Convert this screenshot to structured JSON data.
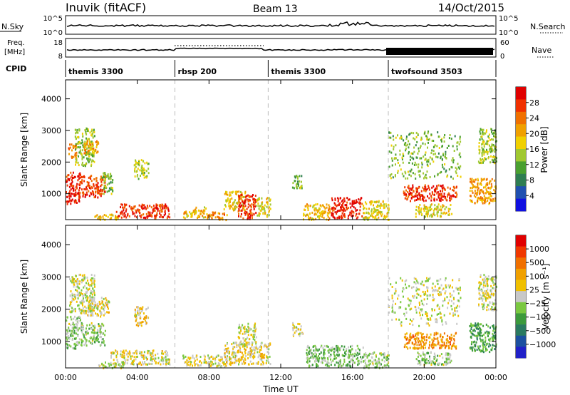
{
  "header": {
    "station": "Inuvik (fitACF)",
    "beam": "Beam 13",
    "date": "14/Oct/2015"
  },
  "strip_labels": {
    "nsky": "N.Sky",
    "nsky_ticks": [
      "10^5",
      "10^0"
    ],
    "nsearch": "N.Search",
    "nsearch_ticks": [
      "10^5",
      "10^0"
    ],
    "freq_line1": "Freq.",
    "freq_line2": "[MHz]",
    "freq_ticks": [
      "18",
      "8"
    ],
    "nave": "Nave",
    "nave_ticks": [
      "60",
      "0"
    ],
    "cpid": "CPID"
  },
  "cpid_segments": [
    {
      "label": "themis 3300",
      "start": 0.0
    },
    {
      "label": "rbsp 200",
      "start": 6.1
    },
    {
      "label": "themis 3300",
      "start": 11.3
    },
    {
      "label": "twofsound 3503",
      "start": 18.0
    }
  ],
  "time_axis": {
    "label": "Time UT",
    "ticks": [
      "00:00",
      "04:00",
      "08:00",
      "12:00",
      "16:00",
      "20:00",
      "00:00"
    ],
    "range_hours": [
      0,
      24
    ]
  },
  "range_axis": {
    "label": "Slant Range [km]",
    "ticks": [
      "1000",
      "2000",
      "3000",
      "4000"
    ],
    "range_km": [
      180,
      4600
    ]
  },
  "power_colorbar": {
    "label": "Power [dB]",
    "ticks": [
      "4",
      "8",
      "12",
      "16",
      "20",
      "24",
      "28"
    ],
    "colors": [
      "#1010e0",
      "#2050b0",
      "#2e7d52",
      "#4aa030",
      "#a0c830",
      "#f0d000",
      "#f0a000",
      "#f07000",
      "#f03000",
      "#e00000"
    ]
  },
  "velocity_colorbar": {
    "label": "Velocity [m s⁻¹]",
    "ticks": [
      "1000",
      "500",
      "100",
      "25",
      "−25",
      "−100",
      "−500",
      "−1000"
    ],
    "colors": [
      "#2020c8",
      "#1c50a0",
      "#2a7a60",
      "#3c9a3c",
      "#7ac840",
      "#c8c8c8",
      "#f0c000",
      "#f0a000",
      "#f07000",
      "#f03800",
      "#e00000"
    ]
  },
  "chart_data": [
    {
      "type": "heatmap",
      "name": "Power",
      "xlabel": "Time UT",
      "ylabel": "Slant Range [km]",
      "xlim": [
        0,
        24
      ],
      "ylim": [
        180,
        4600
      ],
      "units": "dB",
      "regions": [
        {
          "t": [
            0.0,
            0.8
          ],
          "r": [
            700,
            1700
          ],
          "v": 27
        },
        {
          "t": [
            0.1,
            0.6
          ],
          "r": [
            2100,
            2600
          ],
          "v": 22
        },
        {
          "t": [
            0.7,
            2.2
          ],
          "r": [
            900,
            1600
          ],
          "v": 25
        },
        {
          "t": [
            0.5,
            1.6
          ],
          "r": [
            1900,
            3100
          ],
          "v": 13
        },
        {
          "t": [
            1.0,
            1.8
          ],
          "r": [
            2300,
            2700
          ],
          "v": 20
        },
        {
          "t": [
            2.0,
            2.6
          ],
          "r": [
            1000,
            1700
          ],
          "v": 12
        },
        {
          "t": [
            1.6,
            3.0
          ],
          "r": [
            200,
            400
          ],
          "v": 18
        },
        {
          "t": [
            2.8,
            5.8
          ],
          "r": [
            250,
            700
          ],
          "v": 26
        },
        {
          "t": [
            3.8,
            4.6
          ],
          "r": [
            1500,
            2100
          ],
          "v": 14
        },
        {
          "t": [
            6.5,
            7.8
          ],
          "r": [
            250,
            600
          ],
          "v": 18
        },
        {
          "t": [
            7.8,
            9.0
          ],
          "r": [
            200,
            450
          ],
          "v": 21
        },
        {
          "t": [
            8.8,
            10.0
          ],
          "r": [
            500,
            1100
          ],
          "v": 17
        },
        {
          "t": [
            9.6,
            10.6
          ],
          "r": [
            200,
            1000
          ],
          "v": 26
        },
        {
          "t": [
            10.6,
            11.4
          ],
          "r": [
            300,
            900
          ],
          "v": 16
        },
        {
          "t": [
            12.6,
            13.2
          ],
          "r": [
            1200,
            1600
          ],
          "v": 12
        },
        {
          "t": [
            13.2,
            14.8
          ],
          "r": [
            200,
            700
          ],
          "v": 18
        },
        {
          "t": [
            14.8,
            16.5
          ],
          "r": [
            250,
            900
          ],
          "v": 27
        },
        {
          "t": [
            16.5,
            18.0
          ],
          "r": [
            200,
            800
          ],
          "v": 16
        },
        {
          "t": [
            18.0,
            22.0
          ],
          "r": [
            1500,
            3000
          ],
          "v": 12
        },
        {
          "t": [
            18.8,
            21.8
          ],
          "r": [
            800,
            1300
          ],
          "v": 26
        },
        {
          "t": [
            19.5,
            21.5
          ],
          "r": [
            300,
            700
          ],
          "v": 16
        },
        {
          "t": [
            22.5,
            24.0
          ],
          "r": [
            700,
            1500
          ],
          "v": 20
        },
        {
          "t": [
            23.0,
            24.0
          ],
          "r": [
            2000,
            3100
          ],
          "v": 14
        }
      ]
    },
    {
      "type": "heatmap",
      "name": "Velocity",
      "xlabel": "Time UT",
      "ylabel": "Slant Range [km]",
      "xlim": [
        0,
        24
      ],
      "ylim": [
        180,
        4600
      ],
      "units": "m s-1",
      "regions": [
        {
          "t": [
            0.0,
            0.8
          ],
          "r": [
            800,
            1800
          ],
          "v": -180
        },
        {
          "t": [
            0.2,
            1.6
          ],
          "r": [
            1900,
            3100
          ],
          "v": 0
        },
        {
          "t": [
            0.8,
            2.2
          ],
          "r": [
            900,
            1600
          ],
          "v": -150
        },
        {
          "t": [
            1.2,
            2.4
          ],
          "r": [
            1800,
            2400
          ],
          "v": 120
        },
        {
          "t": [
            2.5,
            5.8
          ],
          "r": [
            300,
            750
          ],
          "v": 60
        },
        {
          "t": [
            1.8,
            3.2
          ],
          "r": [
            200,
            400
          ],
          "v": -60
        },
        {
          "t": [
            3.8,
            4.6
          ],
          "r": [
            1500,
            2100
          ],
          "v": 150
        },
        {
          "t": [
            6.5,
            9.0
          ],
          "r": [
            250,
            600
          ],
          "v": 40
        },
        {
          "t": [
            8.8,
            11.4
          ],
          "r": [
            300,
            1000
          ],
          "v": 120
        },
        {
          "t": [
            9.6,
            10.6
          ],
          "r": [
            900,
            1600
          ],
          "v": 0
        },
        {
          "t": [
            12.6,
            13.2
          ],
          "r": [
            1200,
            1600
          ],
          "v": 150
        },
        {
          "t": [
            13.4,
            16.6
          ],
          "r": [
            250,
            900
          ],
          "v": -200
        },
        {
          "t": [
            16.6,
            18.0
          ],
          "r": [
            200,
            700
          ],
          "v": -160
        },
        {
          "t": [
            18.0,
            22.0
          ],
          "r": [
            1500,
            3000
          ],
          "v": 0
        },
        {
          "t": [
            18.8,
            21.8
          ],
          "r": [
            800,
            1300
          ],
          "v": 500
        },
        {
          "t": [
            19.5,
            21.5
          ],
          "r": [
            300,
            700
          ],
          "v": -130
        },
        {
          "t": [
            22.5,
            24.0
          ],
          "r": [
            700,
            1600
          ],
          "v": -400
        },
        {
          "t": [
            23.0,
            24.0
          ],
          "r": [
            2000,
            3100
          ],
          "v": 10
        }
      ]
    }
  ]
}
